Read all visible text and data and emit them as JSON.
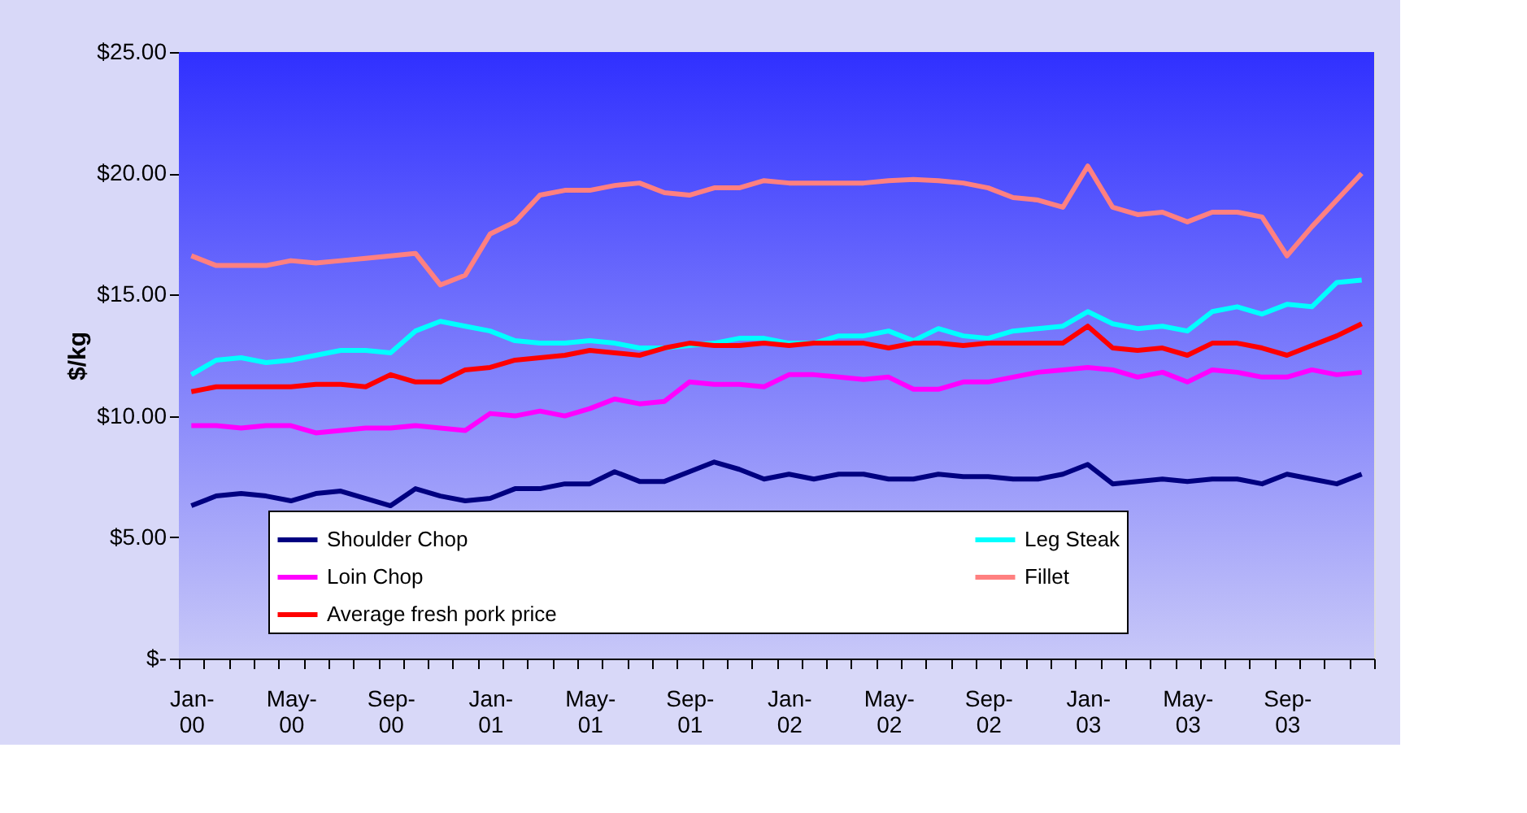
{
  "chart_data": {
    "type": "line",
    "ylabel": "$/kg",
    "categories": [
      "Jan-00",
      null,
      null,
      null,
      "May-00",
      null,
      null,
      null,
      "Sep-00",
      null,
      null,
      null,
      "Jan-01",
      null,
      null,
      null,
      "May-01",
      null,
      null,
      null,
      "Sep-01",
      null,
      null,
      null,
      "Jan-02",
      null,
      null,
      null,
      "May-02",
      null,
      null,
      null,
      "Sep-02",
      null,
      null,
      null,
      "Jan-03",
      null,
      null,
      null,
      "May-03",
      null,
      null,
      null,
      "Sep-03",
      null,
      null,
      null
    ],
    "series": [
      {
        "name": "Shoulder Chop",
        "color": "#000080",
        "values": [
          6.3,
          6.7,
          6.8,
          6.7,
          6.5,
          6.8,
          6.9,
          6.6,
          6.3,
          7.0,
          6.7,
          6.5,
          6.6,
          7.0,
          7.0,
          7.2,
          7.2,
          7.7,
          7.3,
          7.3,
          7.7,
          8.1,
          7.8,
          7.4,
          7.6,
          7.4,
          7.6,
          7.6,
          7.4,
          7.4,
          7.6,
          7.5,
          7.5,
          7.4,
          7.4,
          7.6,
          8.0,
          7.2,
          7.3,
          7.4,
          7.3,
          7.4,
          7.4,
          7.2,
          7.6,
          7.4,
          7.2,
          7.6
        ]
      },
      {
        "name": "Leg Steak",
        "color": "#00ffff",
        "values": [
          11.7,
          12.3,
          12.4,
          12.2,
          12.3,
          12.5,
          12.7,
          12.7,
          12.6,
          13.5,
          13.9,
          13.7,
          13.5,
          13.1,
          13.0,
          13.0,
          13.1,
          13.0,
          12.8,
          12.8,
          12.9,
          13.0,
          13.2,
          13.2,
          13.0,
          13.0,
          13.3,
          13.3,
          13.5,
          13.1,
          13.6,
          13.3,
          13.2,
          13.5,
          13.6,
          13.7,
          14.3,
          13.8,
          13.6,
          13.7,
          13.5,
          14.3,
          14.5,
          14.2,
          14.6,
          14.5,
          15.5,
          15.6
        ]
      },
      {
        "name": "Loin Chop",
        "color": "#ff00ff",
        "values": [
          9.6,
          9.6,
          9.5,
          9.6,
          9.6,
          9.3,
          9.4,
          9.5,
          9.5,
          9.6,
          9.5,
          9.4,
          10.1,
          10.0,
          10.2,
          10.0,
          10.3,
          10.7,
          10.5,
          10.6,
          11.4,
          11.3,
          11.3,
          11.2,
          11.7,
          11.7,
          11.6,
          11.5,
          11.6,
          11.1,
          11.1,
          11.4,
          11.4,
          11.6,
          11.8,
          11.9,
          12.0,
          11.9,
          11.6,
          11.8,
          11.4,
          11.9,
          11.8,
          11.6,
          11.6,
          11.9,
          11.7,
          11.8
        ]
      },
      {
        "name": "Fillet",
        "color": "#ff8080",
        "values": [
          16.6,
          16.2,
          16.2,
          16.2,
          16.4,
          16.3,
          16.4,
          16.5,
          16.6,
          16.7,
          15.4,
          15.8,
          17.5,
          18.0,
          19.1,
          19.3,
          19.3,
          19.5,
          19.6,
          19.2,
          19.1,
          19.4,
          19.4,
          19.7,
          19.6,
          19.6,
          19.6,
          19.6,
          19.7,
          19.75,
          19.7,
          19.6,
          19.4,
          19.0,
          18.9,
          18.6,
          20.3,
          18.6,
          18.3,
          18.4,
          18.0,
          18.4,
          18.4,
          18.2,
          16.6,
          17.8,
          18.9,
          20.0
        ]
      },
      {
        "name": "Average fresh pork price",
        "color": "#ff0000",
        "values": [
          11.0,
          11.2,
          11.2,
          11.2,
          11.2,
          11.3,
          11.3,
          11.2,
          11.7,
          11.4,
          11.4,
          11.9,
          12.0,
          12.3,
          12.4,
          12.5,
          12.7,
          12.6,
          12.5,
          12.8,
          13.0,
          12.9,
          12.9,
          13.0,
          12.9,
          13.0,
          13.0,
          13.0,
          12.8,
          13.0,
          13.0,
          12.9,
          13.0,
          13.0,
          13.0,
          13.0,
          13.7,
          12.8,
          12.7,
          12.8,
          12.5,
          13.0,
          13.0,
          12.8,
          12.5,
          12.9,
          13.3,
          13.8
        ]
      }
    ],
    "ylim": [
      0,
      25
    ],
    "yticks": [
      {
        "value": 0,
        "label": "$-"
      },
      {
        "value": 5,
        "label": "$5.00"
      },
      {
        "value": 10,
        "label": "$10.00"
      },
      {
        "value": 15,
        "label": "$15.00"
      },
      {
        "value": 20,
        "label": "$20.00"
      },
      {
        "value": 25,
        "label": "$25.00"
      }
    ],
    "legend": "bottom",
    "marker": "none",
    "line_style": "solid"
  }
}
